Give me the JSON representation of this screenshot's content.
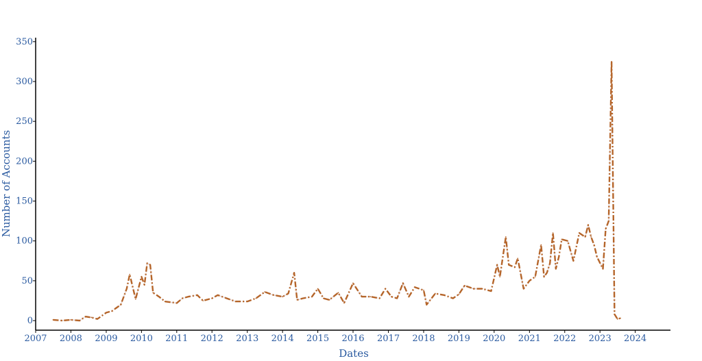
{
  "chart_data": {
    "type": "line",
    "title": "",
    "xlabel": "Dates",
    "ylabel": "Number of Accounts",
    "x_axis": {
      "type": "date",
      "range": [
        "2007-01-01",
        "2024-12-31"
      ],
      "ticks": [
        "2007",
        "2008",
        "2009",
        "2010",
        "2011",
        "2012",
        "2013",
        "2014",
        "2015",
        "2016",
        "2017",
        "2018",
        "2019",
        "2020",
        "2021",
        "2022",
        "2023",
        "2024"
      ]
    },
    "y_axis": {
      "range": [
        -12,
        355
      ],
      "ticks": [
        0,
        50,
        100,
        150,
        200,
        250,
        300,
        350
      ]
    },
    "grid": false,
    "legend": "none",
    "line_color": "#b5652a",
    "line_style": "dash-dot",
    "series": [
      {
        "x": [
          "2007-07",
          "2007-10",
          "2008-01",
          "2008-04",
          "2008-06",
          "2008-08",
          "2008-10",
          "2009-01",
          "2009-03",
          "2009-06",
          "2009-08",
          "2009-09",
          "2009-11",
          "2010-01",
          "2010-02",
          "2010-03",
          "2010-04",
          "2010-05",
          "2010-07",
          "2010-09",
          "2011-01",
          "2011-03",
          "2011-05",
          "2011-08",
          "2011-10",
          "2012-01",
          "2012-03",
          "2012-06",
          "2012-09",
          "2013-01",
          "2013-04",
          "2013-07",
          "2013-10",
          "2014-01",
          "2014-03",
          "2014-05",
          "2014-06",
          "2014-08",
          "2014-11",
          "2015-01",
          "2015-03",
          "2015-05",
          "2015-08",
          "2015-10",
          "2016-01",
          "2016-04",
          "2016-07",
          "2016-10",
          "2016-12",
          "2017-02",
          "2017-04",
          "2017-06",
          "2017-08",
          "2017-10",
          "2018-01",
          "2018-02",
          "2018-05",
          "2018-08",
          "2018-11",
          "2019-01",
          "2019-03",
          "2019-06",
          "2019-09",
          "2019-12",
          "2020-02",
          "2020-03",
          "2020-05",
          "2020-06",
          "2020-08",
          "2020-09",
          "2020-11",
          "2021-01",
          "2021-03",
          "2021-05",
          "2021-06",
          "2021-07",
          "2021-08",
          "2021-09",
          "2021-10",
          "2021-11",
          "2021-12",
          "2022-02",
          "2022-04",
          "2022-06",
          "2022-08",
          "2022-09",
          "2022-10",
          "2022-11",
          "2022-12",
          "2023-02",
          "2023-03",
          "2023-04",
          "2023-05",
          "2023-06",
          "2023-07",
          "2023-08"
        ],
        "y": [
          1,
          0,
          1,
          0,
          5,
          4,
          2,
          10,
          12,
          20,
          40,
          58,
          27,
          55,
          45,
          72,
          70,
          35,
          30,
          24,
          22,
          28,
          30,
          32,
          25,
          28,
          32,
          28,
          24,
          24,
          28,
          36,
          32,
          30,
          34,
          60,
          26,
          28,
          30,
          40,
          28,
          26,
          35,
          22,
          47,
          30,
          30,
          28,
          40,
          30,
          28,
          47,
          30,
          42,
          38,
          20,
          34,
          32,
          28,
          33,
          44,
          40,
          40,
          37,
          70,
          55,
          105,
          70,
          67,
          78,
          40,
          50,
          55,
          95,
          55,
          60,
          72,
          110,
          65,
          80,
          102,
          100,
          75,
          110,
          105,
          120,
          105,
          95,
          80,
          65,
          115,
          125,
          325,
          8,
          2,
          3
        ]
      }
    ]
  }
}
